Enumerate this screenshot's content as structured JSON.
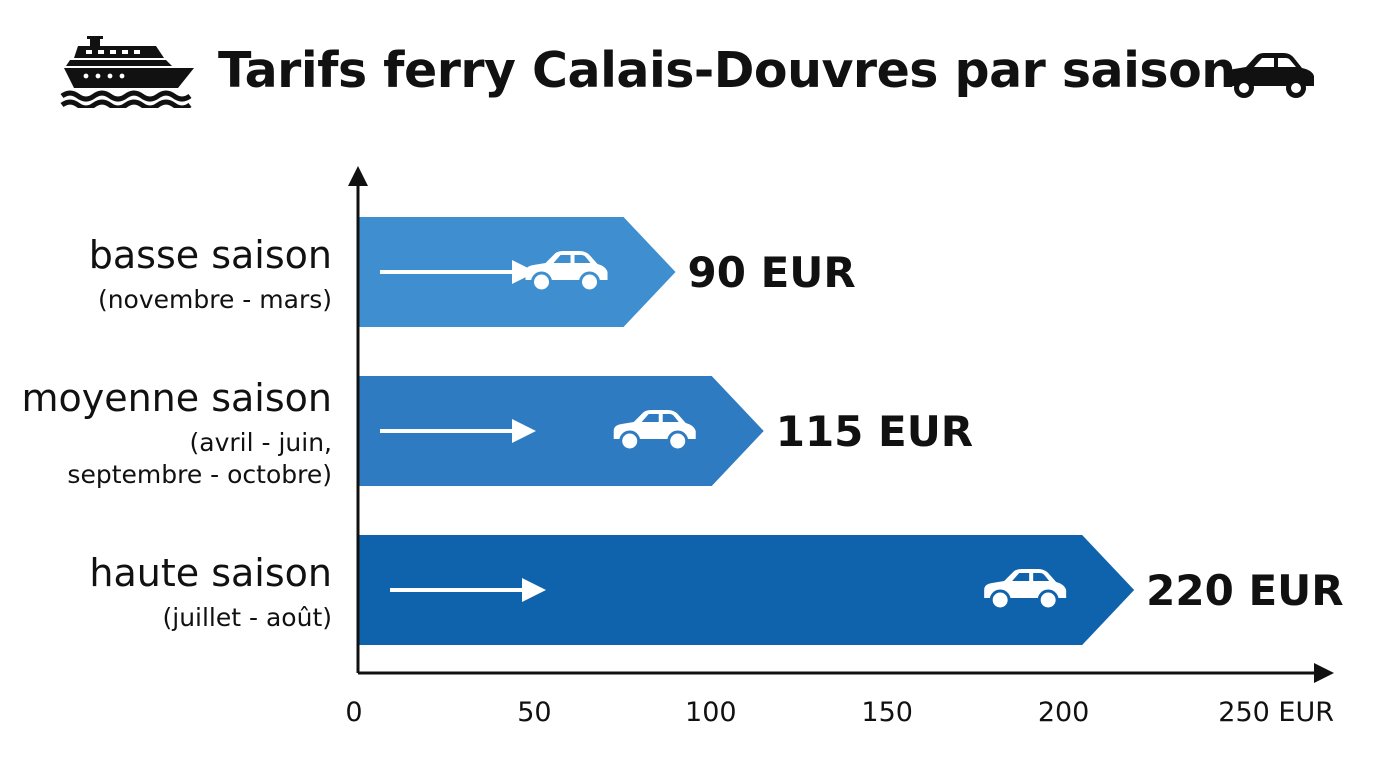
{
  "header": {
    "title": "Tarifs ferry Calais-Douvres par saison",
    "left_icon": "ship-icon",
    "right_icon": "car-icon"
  },
  "chart_data": {
    "type": "bar",
    "orientation": "horizontal",
    "title": "Tarifs ferry Calais-Douvres par saison",
    "categories": [
      {
        "name": "basse saison",
        "period": [
          "(novembre - mars)"
        ]
      },
      {
        "name": "moyenne saison",
        "period": [
          "(avril - juin,",
          "septembre - octobre)"
        ]
      },
      {
        "name": "haute saison",
        "period": [
          "(juillet - août)"
        ]
      }
    ],
    "values": [
      90,
      115,
      220
    ],
    "value_labels": [
      "90 EUR",
      "115 EUR",
      "220 EUR"
    ],
    "xlim": [
      0,
      250
    ],
    "x_ticks": [
      0,
      50,
      100,
      150,
      200,
      250
    ],
    "x_tick_labels": [
      "0",
      "50",
      "100",
      "150",
      "200",
      "250 EUR"
    ],
    "bar_colors": [
      "#3e8ed0",
      "#2e7bc2",
      "#0f63ad"
    ],
    "bar_icon": "car-icon",
    "grid": false,
    "legend": "none"
  }
}
